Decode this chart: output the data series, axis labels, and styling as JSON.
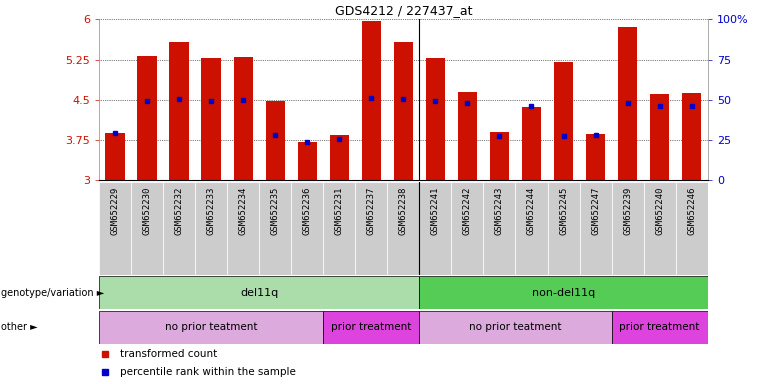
{
  "title": "GDS4212 / 227437_at",
  "samples": [
    "GSM652229",
    "GSM652230",
    "GSM652232",
    "GSM652233",
    "GSM652234",
    "GSM652235",
    "GSM652236",
    "GSM652231",
    "GSM652237",
    "GSM652238",
    "GSM652241",
    "GSM652242",
    "GSM652243",
    "GSM652244",
    "GSM652245",
    "GSM652247",
    "GSM652239",
    "GSM652240",
    "GSM652246"
  ],
  "bar_heights": [
    3.88,
    5.32,
    5.58,
    5.28,
    5.3,
    4.47,
    3.72,
    3.84,
    5.97,
    5.57,
    5.27,
    4.65,
    3.9,
    4.37,
    5.2,
    3.86,
    5.85,
    4.6,
    4.62
  ],
  "blue_dots": [
    3.88,
    4.48,
    4.51,
    4.47,
    4.5,
    3.84,
    3.72,
    3.78,
    4.54,
    4.52,
    4.48,
    4.44,
    3.82,
    4.38,
    3.82,
    3.84,
    4.44,
    4.38,
    4.38
  ],
  "ylim": [
    3,
    6
  ],
  "yticks": [
    3,
    3.75,
    4.5,
    5.25,
    6
  ],
  "ytick_labels": [
    "3",
    "3.75",
    "4.5",
    "5.25",
    "6"
  ],
  "right_ytick_positions": [
    0,
    0.25,
    0.5,
    0.75,
    1.0
  ],
  "right_ytick_labels": [
    "0",
    "25",
    "50",
    "75",
    "100%"
  ],
  "bar_color": "#cc1100",
  "dot_color": "#0000cc",
  "background_color": "#ffffff",
  "xticklabel_bg": "#cccccc",
  "genotype_groups": [
    {
      "label": "del11q",
      "start": 0,
      "end": 10,
      "color": "#aaddaa"
    },
    {
      "label": "non-del11q",
      "start": 10,
      "end": 19,
      "color": "#55cc55"
    }
  ],
  "treatment_groups": [
    {
      "label": "no prior teatment",
      "start": 0,
      "end": 7,
      "color": "#ddaadd"
    },
    {
      "label": "prior treatment",
      "start": 7,
      "end": 10,
      "color": "#dd44dd"
    },
    {
      "label": "no prior teatment",
      "start": 10,
      "end": 16,
      "color": "#ddaadd"
    },
    {
      "label": "prior treatment",
      "start": 16,
      "end": 19,
      "color": "#dd44dd"
    }
  ],
  "legend_items": [
    {
      "label": "transformed count",
      "color": "#cc1100"
    },
    {
      "label": "percentile rank within the sample",
      "color": "#0000cc"
    }
  ],
  "genotype_label": "genotype/variation",
  "other_label": "other",
  "tick_fontsize": 8,
  "label_fontsize": 8,
  "annot_fontsize": 8
}
